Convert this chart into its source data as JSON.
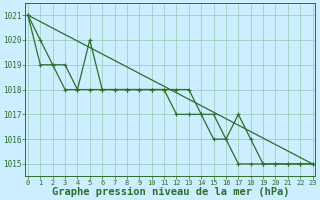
{
  "title": "Graphe pression niveau de la mer (hPa)",
  "bg_color": "#cceeff",
  "grid_color": "#9ecfbe",
  "line_color": "#2d6e2d",
  "xlim": [
    -0.2,
    23.2
  ],
  "ylim": [
    1014.5,
    1021.5
  ],
  "yticks": [
    1015,
    1016,
    1017,
    1018,
    1019,
    1020,
    1021
  ],
  "xticks": [
    0,
    1,
    2,
    3,
    4,
    5,
    6,
    7,
    8,
    9,
    10,
    11,
    12,
    13,
    14,
    15,
    16,
    17,
    18,
    19,
    20,
    21,
    22,
    23
  ],
  "series1_x": [
    0,
    1,
    2,
    3,
    4,
    5,
    6,
    7,
    8,
    9,
    10,
    11,
    12,
    13,
    14,
    15,
    16,
    17,
    18,
    19,
    20,
    21,
    22,
    23
  ],
  "series1_y": [
    1021,
    1020,
    1019,
    1019,
    1018,
    1020,
    1018,
    1018,
    1018,
    1018,
    1018,
    1018,
    1018,
    1018,
    1017,
    1017,
    1016,
    1017,
    1016,
    1015,
    1015,
    1015,
    1015,
    1015
  ],
  "series2_x": [
    0,
    1,
    2,
    3,
    4,
    5,
    6,
    7,
    8,
    9,
    10,
    11,
    12,
    13,
    14,
    15,
    16,
    17,
    18,
    19,
    20,
    21,
    22,
    23
  ],
  "series2_y": [
    1021,
    1019,
    1019,
    1018,
    1018,
    1018,
    1018,
    1018,
    1018,
    1018,
    1018,
    1018,
    1017,
    1017,
    1017,
    1016,
    1016,
    1015,
    1015,
    1015,
    1015,
    1015,
    1015,
    1015
  ],
  "series3_x": [
    0,
    23
  ],
  "series3_y": [
    1021,
    1015
  ],
  "markersize": 3,
  "linewidth": 0.9,
  "title_fontsize": 7.5,
  "tick_fontsize": 5.0,
  "ytick_fontsize": 5.5
}
